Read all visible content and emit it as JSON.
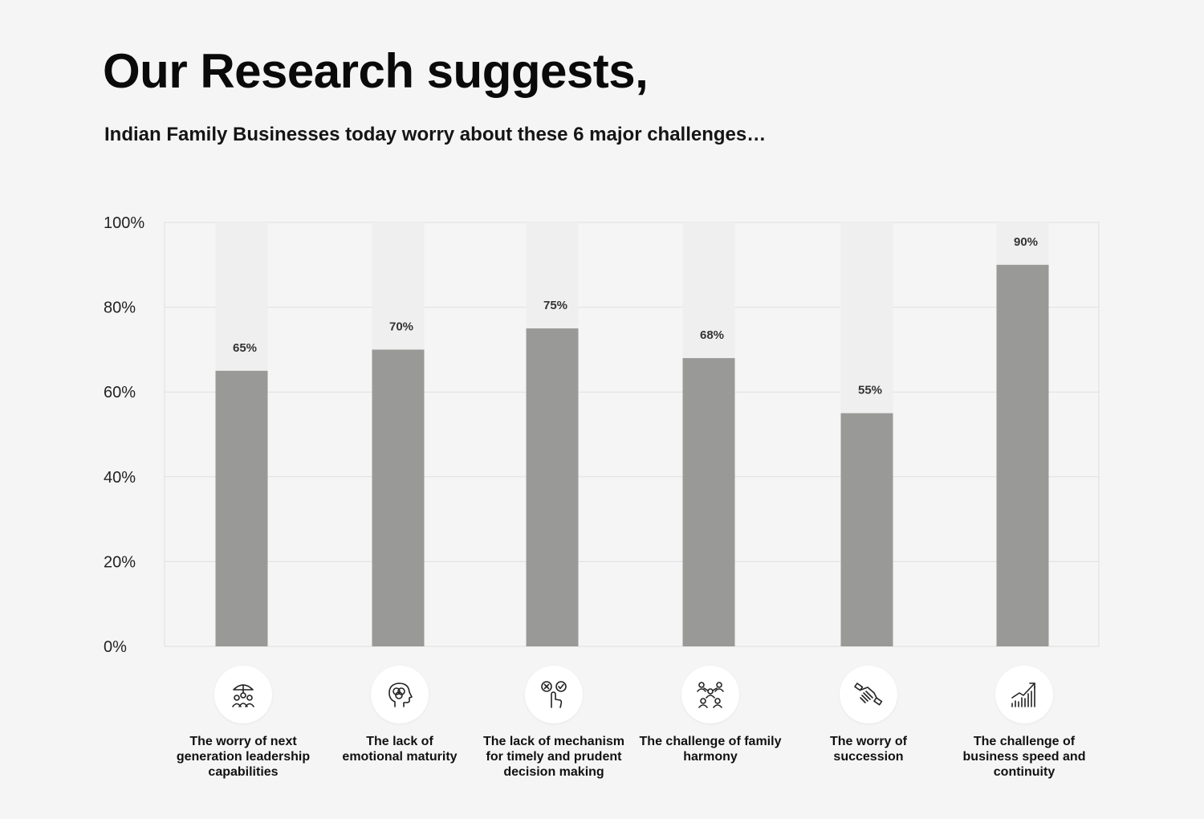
{
  "header": {
    "title": "Our Research suggests,",
    "subtitle": "Indian Family Businesses today worry about these 6 major challenges…"
  },
  "colors": {
    "bar": "#999997",
    "bar_track": "#efefef",
    "grid": "#e0e0e0",
    "background": "#f5f5f5"
  },
  "chart_data": {
    "type": "bar",
    "title": "Our Research suggests,",
    "subtitle": "Indian Family Businesses today worry about these 6 major challenges…",
    "xlabel": "",
    "ylabel": "",
    "ylim": [
      0,
      100
    ],
    "yticks": [
      0,
      20,
      40,
      60,
      80,
      100
    ],
    "ytick_labels": [
      "0%",
      "20%",
      "40%",
      "60%",
      "80%",
      "100%"
    ],
    "grid": true,
    "categories": [
      "The worry of next generation leadership capabilities",
      "The lack of emotional maturity",
      "The lack of mechanism for timely and prudent decision making",
      "The challenge of family harmony",
      "The worry of succession",
      "The challenge of business speed and continuity"
    ],
    "values": [
      65,
      70,
      75,
      68,
      55,
      90
    ],
    "value_labels": [
      "65%",
      "70%",
      "75%",
      "68%",
      "55%",
      "90%"
    ],
    "icons": [
      "umbrella-family-icon",
      "head-brain-icon",
      "decision-click-icon",
      "family-network-icon",
      "handshake-icon",
      "growth-chart-icon"
    ]
  },
  "categories_display": [
    {
      "line1": "The worry of next",
      "line2": "generation leadership",
      "line3": "capabilities"
    },
    {
      "line1": "The lack of",
      "line2": "emotional maturity",
      "line3": ""
    },
    {
      "line1": "The lack of mechanism",
      "line2": "for timely and prudent",
      "line3": "decision making"
    },
    {
      "line1": "The challenge of family",
      "line2": "harmony",
      "line3": ""
    },
    {
      "line1": "The worry of",
      "line2": "succession",
      "line3": ""
    },
    {
      "line1": "The challenge of",
      "line2": "business speed and",
      "line3": "continuity"
    }
  ]
}
